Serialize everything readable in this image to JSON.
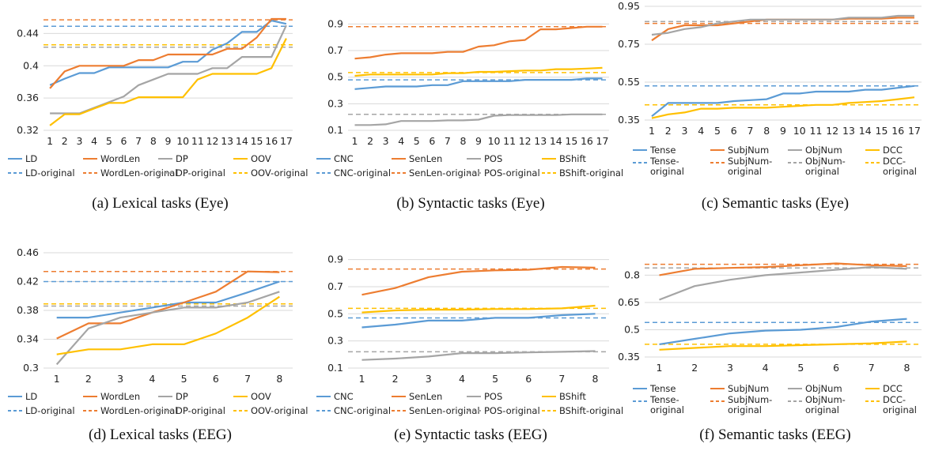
{
  "colors": {
    "blue": "#5B9BD5",
    "orange": "#ED7D31",
    "gray": "#A5A5A5",
    "yellow": "#FFC000",
    "grid": "#D9D9D9"
  },
  "chart_data": [
    {
      "type": "line",
      "caption": "(a)  Lexical tasks (Eye)",
      "categories": [
        "1",
        "2",
        "3",
        "4",
        "5",
        "6",
        "7",
        "8",
        "9",
        "10",
        "11",
        "12",
        "13",
        "14",
        "15",
        "16",
        "17"
      ],
      "y_ticks": [
        "0.32",
        "0.36",
        "0.4",
        "0.44"
      ],
      "ylim": [
        0.32,
        0.46
      ],
      "grid": true,
      "legend_position": "bottom",
      "series": [
        {
          "name": "LD",
          "color": "blue",
          "values": [
            0.376,
            0.384,
            0.391,
            0.391,
            0.398,
            0.398,
            0.398,
            0.398,
            0.398,
            0.405,
            0.405,
            0.42,
            0.428,
            0.442,
            0.442,
            0.456,
            0.452
          ]
        },
        {
          "name": "WordLen",
          "color": "orange",
          "values": [
            0.372,
            0.393,
            0.4,
            0.4,
            0.4,
            0.4,
            0.407,
            0.407,
            0.414,
            0.414,
            0.414,
            0.414,
            0.421,
            0.421,
            0.435,
            0.458,
            0.458
          ]
        },
        {
          "name": "DP",
          "color": "gray",
          "values": [
            0.341,
            0.341,
            0.341,
            0.348,
            0.355,
            0.362,
            0.376,
            0.383,
            0.39,
            0.39,
            0.39,
            0.397,
            0.397,
            0.411,
            0.411,
            0.411,
            0.45
          ]
        },
        {
          "name": "OOV",
          "color": "yellow",
          "values": [
            0.326,
            0.34,
            0.34,
            0.347,
            0.354,
            0.354,
            0.361,
            0.361,
            0.361,
            0.361,
            0.383,
            0.39,
            0.39,
            0.39,
            0.39,
            0.397,
            0.434
          ]
        }
      ],
      "baselines": [
        {
          "name": "LD-original",
          "color": "blue",
          "value": 0.449
        },
        {
          "name": "WordLen-original",
          "color": "orange",
          "value": 0.457
        },
        {
          "name": "DP-original",
          "color": "gray",
          "value": 0.423
        },
        {
          "name": "OOV-original",
          "color": "yellow",
          "value": 0.426
        }
      ]
    },
    {
      "type": "line",
      "caption": "(b)  Syntactic tasks (Eye)",
      "categories": [
        "1",
        "2",
        "3",
        "4",
        "5",
        "6",
        "7",
        "8",
        "9",
        "10",
        "11",
        "12",
        "13",
        "14",
        "15",
        "16",
        "17"
      ],
      "y_ticks": [
        "0.1",
        "0.3",
        "0.5",
        "0.7",
        "0.9"
      ],
      "ylim": [
        0.1,
        0.95
      ],
      "grid": true,
      "legend_position": "bottom",
      "series": [
        {
          "name": "CNC",
          "color": "blue",
          "values": [
            0.41,
            0.42,
            0.43,
            0.43,
            0.43,
            0.44,
            0.44,
            0.47,
            0.47,
            0.47,
            0.47,
            0.48,
            0.48,
            0.48,
            0.48,
            0.49,
            0.49
          ]
        },
        {
          "name": "SenLen",
          "color": "orange",
          "values": [
            0.64,
            0.65,
            0.67,
            0.68,
            0.68,
            0.68,
            0.69,
            0.69,
            0.73,
            0.74,
            0.77,
            0.78,
            0.86,
            0.86,
            0.87,
            0.88,
            0.88
          ]
        },
        {
          "name": "POS",
          "color": "gray",
          "values": [
            0.14,
            0.14,
            0.145,
            0.17,
            0.17,
            0.17,
            0.175,
            0.175,
            0.18,
            0.21,
            0.215,
            0.215,
            0.215,
            0.215,
            0.22,
            0.22,
            0.22
          ]
        },
        {
          "name": "BShift",
          "color": "yellow",
          "values": [
            0.51,
            0.52,
            0.52,
            0.52,
            0.52,
            0.52,
            0.53,
            0.53,
            0.54,
            0.54,
            0.545,
            0.55,
            0.55,
            0.56,
            0.56,
            0.565,
            0.57
          ]
        }
      ],
      "baselines": [
        {
          "name": "CNC-original",
          "color": "blue",
          "value": 0.48
        },
        {
          "name": "SenLen-original",
          "color": "orange",
          "value": 0.88
        },
        {
          "name": "POS-original",
          "color": "gray",
          "value": 0.22
        },
        {
          "name": "BShift-original",
          "color": "yellow",
          "value": 0.535
        }
      ]
    },
    {
      "type": "line",
      "caption": "(c)  Semantic tasks (Eye)",
      "categories": [
        "1",
        "2",
        "3",
        "4",
        "5",
        "6",
        "7",
        "8",
        "9",
        "10",
        "11",
        "12",
        "13",
        "14",
        "15",
        "16",
        "17"
      ],
      "y_ticks": [
        "0.35",
        "0.55",
        "0.75",
        "0.95"
      ],
      "ylim": [
        0.35,
        0.95
      ],
      "grid": true,
      "legend_position": "bottom",
      "series": [
        {
          "name": "Tense",
          "color": "blue",
          "values": [
            0.37,
            0.44,
            0.44,
            0.44,
            0.44,
            0.45,
            0.455,
            0.46,
            0.49,
            0.49,
            0.5,
            0.5,
            0.5,
            0.51,
            0.51,
            0.52,
            0.53
          ]
        },
        {
          "name": "SubjNum",
          "color": "orange",
          "values": [
            0.77,
            0.83,
            0.85,
            0.85,
            0.85,
            0.86,
            0.87,
            0.88,
            0.88,
            0.88,
            0.88,
            0.88,
            0.885,
            0.885,
            0.885,
            0.89,
            0.89
          ]
        },
        {
          "name": "ObjNum",
          "color": "gray",
          "values": [
            0.8,
            0.81,
            0.83,
            0.84,
            0.86,
            0.87,
            0.88,
            0.88,
            0.88,
            0.88,
            0.88,
            0.88,
            0.89,
            0.89,
            0.89,
            0.9,
            0.9
          ]
        },
        {
          "name": "DCC",
          "color": "yellow",
          "values": [
            0.36,
            0.38,
            0.39,
            0.41,
            0.41,
            0.415,
            0.415,
            0.415,
            0.42,
            0.425,
            0.43,
            0.43,
            0.44,
            0.445,
            0.45,
            0.46,
            0.47
          ]
        }
      ],
      "baselines": [
        {
          "name": "Tense-original",
          "color": "blue",
          "value": 0.53
        },
        {
          "name": "SubjNum-original",
          "color": "orange",
          "value": 0.86
        },
        {
          "name": "ObjNum-original",
          "color": "gray",
          "value": 0.87
        },
        {
          "name": "DCC-original",
          "color": "yellow",
          "value": 0.43
        }
      ]
    },
    {
      "type": "line",
      "caption": "(d)  Lexical tasks (EEG)",
      "categories": [
        "1",
        "2",
        "3",
        "4",
        "5",
        "6",
        "7",
        "8"
      ],
      "y_ticks": [
        "0.3",
        "0.34",
        "0.38",
        "0.42",
        "0.46"
      ],
      "ylim": [
        0.3,
        0.46
      ],
      "grid": true,
      "legend_position": "bottom",
      "series": [
        {
          "name": "LD",
          "color": "blue",
          "values": [
            0.37,
            0.37,
            0.377,
            0.384,
            0.391,
            0.391,
            0.405,
            0.42
          ]
        },
        {
          "name": "WordLen",
          "color": "orange",
          "values": [
            0.341,
            0.362,
            0.362,
            0.377,
            0.391,
            0.406,
            0.434,
            0.433
          ]
        },
        {
          "name": "DP",
          "color": "gray",
          "values": [
            0.305,
            0.355,
            0.37,
            0.377,
            0.384,
            0.384,
            0.391,
            0.406
          ]
        },
        {
          "name": "OOV",
          "color": "yellow",
          "values": [
            0.319,
            0.326,
            0.326,
            0.333,
            0.333,
            0.348,
            0.37,
            0.399
          ]
        }
      ],
      "baselines": [
        {
          "name": "LD-original",
          "color": "blue",
          "value": 0.42
        },
        {
          "name": "WordLen-original",
          "color": "orange",
          "value": 0.434
        },
        {
          "name": "DP-original",
          "color": "gray",
          "value": 0.386
        },
        {
          "name": "OOV-original",
          "color": "yellow",
          "value": 0.389
        }
      ]
    },
    {
      "type": "line",
      "caption": "(e)  Syntactic tasks (EEG)",
      "categories": [
        "1",
        "2",
        "3",
        "4",
        "5",
        "6",
        "7",
        "8"
      ],
      "y_ticks": [
        "0.1",
        "0.3",
        "0.5",
        "0.7",
        "0.9"
      ],
      "ylim": [
        0.1,
        0.95
      ],
      "grid": true,
      "legend_position": "bottom",
      "series": [
        {
          "name": "CNC",
          "color": "blue",
          "values": [
            0.4,
            0.42,
            0.45,
            0.45,
            0.47,
            0.47,
            0.49,
            0.5
          ]
        },
        {
          "name": "SenLen",
          "color": "orange",
          "values": [
            0.64,
            0.69,
            0.77,
            0.81,
            0.82,
            0.825,
            0.845,
            0.84
          ]
        },
        {
          "name": "POS",
          "color": "gray",
          "values": [
            0.16,
            0.17,
            0.185,
            0.21,
            0.21,
            0.215,
            0.22,
            0.225
          ]
        },
        {
          "name": "BShift",
          "color": "yellow",
          "values": [
            0.51,
            0.525,
            0.53,
            0.53,
            0.535,
            0.535,
            0.54,
            0.56
          ]
        }
      ],
      "baselines": [
        {
          "name": "CNC-original",
          "color": "blue",
          "value": 0.47
        },
        {
          "name": "SenLen-original",
          "color": "orange",
          "value": 0.83
        },
        {
          "name": "POS-original",
          "color": "gray",
          "value": 0.22
        },
        {
          "name": "BShift-original",
          "color": "yellow",
          "value": 0.54
        }
      ]
    },
    {
      "type": "line",
      "caption": "(f)  Semantic tasks (EEG)",
      "categories": [
        "1",
        "2",
        "3",
        "4",
        "5",
        "6",
        "7",
        "8"
      ],
      "y_ticks": [
        "0.35",
        "0.5",
        "0.65",
        "0.8"
      ],
      "ylim": [
        0.35,
        0.88
      ],
      "grid": true,
      "legend_position": "bottom",
      "series": [
        {
          "name": "Tense",
          "color": "blue",
          "values": [
            0.42,
            0.45,
            0.48,
            0.495,
            0.5,
            0.515,
            0.545,
            0.56
          ]
        },
        {
          "name": "SubjNum",
          "color": "orange",
          "values": [
            0.8,
            0.835,
            0.84,
            0.845,
            0.855,
            0.865,
            0.855,
            0.85
          ]
        },
        {
          "name": "ObjNum",
          "color": "gray",
          "values": [
            0.665,
            0.74,
            0.775,
            0.8,
            0.815,
            0.83,
            0.845,
            0.835
          ]
        },
        {
          "name": "DCC",
          "color": "yellow",
          "values": [
            0.39,
            0.4,
            0.41,
            0.41,
            0.415,
            0.42,
            0.425,
            0.435
          ]
        }
      ],
      "baselines": [
        {
          "name": "Tense-original",
          "color": "blue",
          "value": 0.54
        },
        {
          "name": "SubjNum-original",
          "color": "orange",
          "value": 0.86
        },
        {
          "name": "ObjNum-original",
          "color": "gray",
          "value": 0.84
        },
        {
          "name": "DCC-original",
          "color": "yellow",
          "value": 0.42
        }
      ]
    }
  ]
}
